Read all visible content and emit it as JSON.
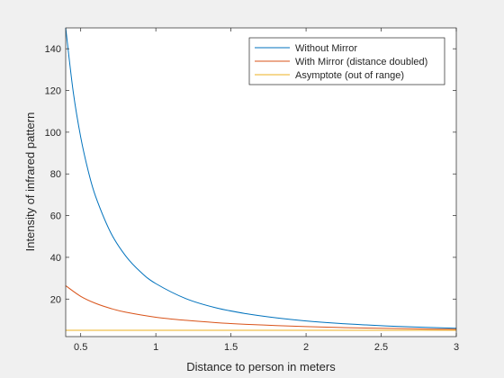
{
  "chart_data": {
    "type": "line",
    "title": "",
    "xlabel": "Distance to person in meters",
    "ylabel": "Intensity of infrared pattern",
    "xlim": [
      0.4,
      3
    ],
    "ylim": [
      2,
      150
    ],
    "xticks": [
      0.5,
      1,
      1.5,
      2,
      2.5,
      3
    ],
    "xtick_labels": [
      "0.5",
      "1",
      "1.5",
      "2",
      "2.5",
      "3"
    ],
    "yticks": [
      20,
      40,
      60,
      80,
      100,
      120,
      140
    ],
    "ytick_labels": [
      "20",
      "40",
      "60",
      "80",
      "100",
      "120",
      "140"
    ],
    "grid": false,
    "legend_position": "top-right",
    "series": [
      {
        "name": "Without Mirror",
        "color": "#0072BD",
        "x": [
          0.4,
          0.45,
          0.5,
          0.55,
          0.6,
          0.7,
          0.8,
          0.9,
          1.0,
          1.2,
          1.4,
          1.6,
          1.8,
          2.0,
          2.2,
          2.4,
          2.6,
          2.8,
          3.0
        ],
        "y": [
          150.0,
          119.4,
          97.6,
          81.4,
          69.0,
          51.8,
          40.6,
          32.9,
          27.4,
          20.2,
          15.8,
          13.0,
          11.0,
          9.5,
          8.4,
          7.6,
          6.9,
          6.4,
          6.0
        ]
      },
      {
        "name": "With Mirror (distance doubled)",
        "color": "#D95319",
        "x": [
          0.4,
          0.5,
          0.6,
          0.7,
          0.8,
          1.0,
          1.2,
          1.4,
          1.6,
          1.8,
          2.0,
          2.2,
          2.4,
          2.6,
          2.8,
          3.0
        ],
        "y": [
          26.4,
          21.3,
          17.9,
          15.5,
          13.7,
          11.3,
          9.8,
          8.7,
          7.9,
          7.3,
          6.8,
          6.4,
          6.1,
          5.9,
          5.6,
          5.5
        ]
      },
      {
        "name": "Asymptote (out of range)",
        "color": "#EDB120",
        "x": [
          0.4,
          3.0
        ],
        "y": [
          5.0,
          5.0
        ]
      }
    ]
  }
}
